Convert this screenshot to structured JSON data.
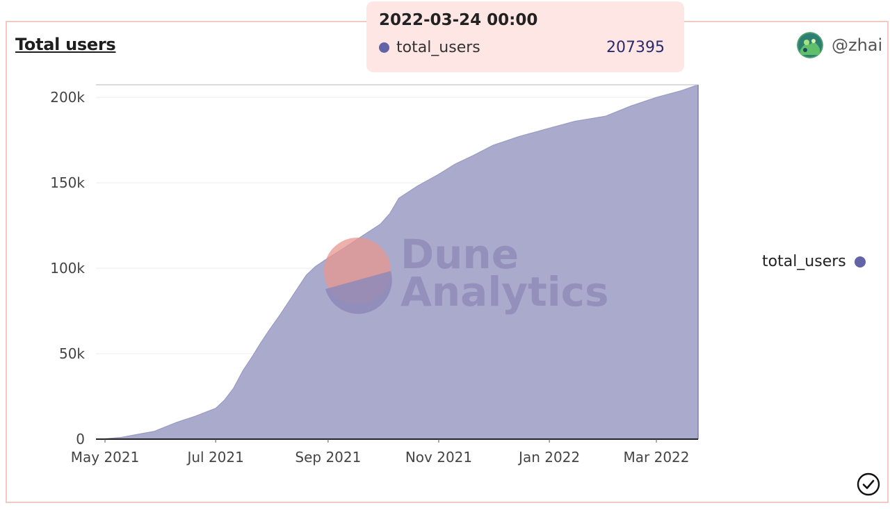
{
  "title": "Total users",
  "user": {
    "handle": "@zhai"
  },
  "tooltip": {
    "date": "2022-03-24 00:00",
    "series": "total_users",
    "value": "207395"
  },
  "legend": {
    "label": "total_users"
  },
  "watermark": {
    "line1": "Dune",
    "line2": "Analytics"
  },
  "colors": {
    "series": "#6364a8",
    "area": "#a9aacc",
    "tooltip_bg": "#fde6e4",
    "border": "#f3c9c4"
  },
  "chart_data": {
    "type": "area",
    "title": "Total users",
    "series": [
      {
        "name": "total_users",
        "x": [
          "2021-04-29",
          "2021-05-10",
          "2021-05-20",
          "2021-05-28",
          "2021-06-10",
          "2021-06-20",
          "2021-06-26",
          "2021-07-01",
          "2021-07-06",
          "2021-07-11",
          "2021-07-16",
          "2021-07-21",
          "2021-07-25",
          "2021-07-30",
          "2021-08-05",
          "2021-08-10",
          "2021-08-15",
          "2021-08-20",
          "2021-08-25",
          "2021-09-01",
          "2021-09-10",
          "2021-09-20",
          "2021-09-30",
          "2021-10-05",
          "2021-10-10",
          "2021-10-20",
          "2021-11-01",
          "2021-11-10",
          "2021-11-20",
          "2021-12-01",
          "2021-12-15",
          "2022-01-01",
          "2022-01-15",
          "2022-02-01",
          "2022-02-15",
          "2022-03-01",
          "2022-03-15",
          "2022-03-24"
        ],
        "values": [
          0,
          1000,
          3000,
          4500,
          10000,
          13500,
          16000,
          18000,
          23000,
          30000,
          40000,
          48000,
          55000,
          63000,
          72000,
          80000,
          88000,
          96000,
          101000,
          106000,
          112000,
          119000,
          126000,
          132000,
          141000,
          148000,
          155000,
          161000,
          166000,
          172000,
          177000,
          182000,
          186000,
          189000,
          195000,
          200000,
          204000,
          207395
        ]
      }
    ],
    "x_ticks": [
      "May 2021",
      "Jul 2021",
      "Sep 2021",
      "Nov 2021",
      "Jan 2022",
      "Mar 2022"
    ],
    "y_ticks": [
      "0",
      "50k",
      "100k",
      "150k",
      "200k"
    ],
    "ylim": [
      0,
      207395
    ],
    "grid": true,
    "legend_position": "right"
  }
}
